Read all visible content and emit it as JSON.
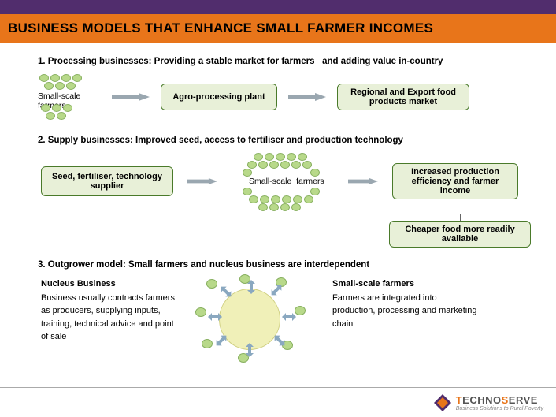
{
  "colors": {
    "purple_bar": "#512d6d",
    "orange_bar": "#e8751a",
    "box_border": "#4a7a2a",
    "box_fill": "#e8f0d8",
    "bubble_fill": "#b8d98a",
    "bubble_border": "#88b060",
    "circle_fill": "#f0f0b8",
    "circle_border": "#cfcf80",
    "arrow_fill": "#9aa7b0",
    "cell_arrow": "#8aa8c0",
    "text": "#000000",
    "logo_gray": "#555555",
    "logo_accent": "#e8751a",
    "logo_tag": "#888888"
  },
  "title": "BUSINESS MODELS THAT ENHANCE SMALL FARMER INCOMES",
  "section1": {
    "heading": "1. Processing businesses: Providing a stable market for farmers   and adding value in-country",
    "farmers_label": "Small-scale farmers",
    "box_a": "Agro-processing plant",
    "box_b": "Regional and Export food products market"
  },
  "section2": {
    "heading": "2. Supply businesses: Improved seed, access to fertiliser and production technology",
    "supplier_box": "Seed, fertiliser, technology supplier",
    "center_label": "Small-scale  farmers",
    "result_box": "Increased production efficiency and farmer income",
    "cheaper_box": "Cheaper food more readily available"
  },
  "section3": {
    "heading": "3. Outgrower model: Small farmers and nucleus business are interdependent",
    "nucleus": {
      "title": "Nucleus Business",
      "body": "Business usually contracts farmers as producers, supplying inputs, training, technical advice and point of sale"
    },
    "farmers": {
      "title": "Small-scale farmers",
      "body": "Farmers are integrated into production, processing and marketing chain"
    }
  },
  "logo": {
    "name_a": "T",
    "name_b": "ECHNO",
    "name_c": "S",
    "name_d": "ERVE",
    "tagline": "Business Solutions to Rural Poverty"
  },
  "geometry": {
    "bubbles_s1": [
      {
        "l": 2,
        "t": 0,
        "w": 12,
        "h": 10
      },
      {
        "l": 16,
        "t": 0,
        "w": 12,
        "h": 10
      },
      {
        "l": 30,
        "t": 0,
        "w": 12,
        "h": 10
      },
      {
        "l": 44,
        "t": 0,
        "w": 12,
        "h": 10
      },
      {
        "l": 8,
        "t": 10,
        "w": 12,
        "h": 10
      },
      {
        "l": 22,
        "t": 10,
        "w": 12,
        "h": 10
      },
      {
        "l": 36,
        "t": 10,
        "w": 12,
        "h": 10
      },
      {
        "l": 4,
        "t": 38,
        "w": 12,
        "h": 10
      },
      {
        "l": 18,
        "t": 38,
        "w": 12,
        "h": 10
      },
      {
        "l": 32,
        "t": 38,
        "w": 12,
        "h": 10
      },
      {
        "l": 10,
        "t": 48,
        "w": 12,
        "h": 10
      },
      {
        "l": 24,
        "t": 48,
        "w": 12,
        "h": 10
      }
    ],
    "bubbles_s2": [
      {
        "l": 28,
        "t": 0,
        "w": 12,
        "h": 10
      },
      {
        "l": 42,
        "t": 0,
        "w": 12,
        "h": 10
      },
      {
        "l": 56,
        "t": 0,
        "w": 12,
        "h": 10
      },
      {
        "l": 70,
        "t": 0,
        "w": 12,
        "h": 10
      },
      {
        "l": 84,
        "t": 0,
        "w": 12,
        "h": 10
      },
      {
        "l": 20,
        "t": 10,
        "w": 12,
        "h": 10
      },
      {
        "l": 34,
        "t": 10,
        "w": 12,
        "h": 10
      },
      {
        "l": 48,
        "t": 10,
        "w": 12,
        "h": 10
      },
      {
        "l": 62,
        "t": 10,
        "w": 12,
        "h": 10
      },
      {
        "l": 76,
        "t": 10,
        "w": 12,
        "h": 10
      },
      {
        "l": 90,
        "t": 10,
        "w": 12,
        "h": 10
      },
      {
        "l": 14,
        "t": 20,
        "w": 12,
        "h": 10
      },
      {
        "l": 100,
        "t": 20,
        "w": 12,
        "h": 10
      },
      {
        "l": 14,
        "t": 44,
        "w": 12,
        "h": 10
      },
      {
        "l": 100,
        "t": 44,
        "w": 12,
        "h": 10
      },
      {
        "l": 22,
        "t": 54,
        "w": 12,
        "h": 10
      },
      {
        "l": 36,
        "t": 54,
        "w": 12,
        "h": 10
      },
      {
        "l": 50,
        "t": 54,
        "w": 12,
        "h": 10
      },
      {
        "l": 64,
        "t": 54,
        "w": 12,
        "h": 10
      },
      {
        "l": 78,
        "t": 54,
        "w": 12,
        "h": 10
      },
      {
        "l": 92,
        "t": 54,
        "w": 12,
        "h": 10
      },
      {
        "l": 34,
        "t": 64,
        "w": 12,
        "h": 10
      },
      {
        "l": 48,
        "t": 64,
        "w": 12,
        "h": 10
      },
      {
        "l": 62,
        "t": 64,
        "w": 12,
        "h": 10
      },
      {
        "l": 76,
        "t": 64,
        "w": 12,
        "h": 10
      }
    ],
    "bubbles_s3": [
      {
        "l": 20,
        "t": 2,
        "w": 14,
        "h": 12
      },
      {
        "l": 62,
        "t": -4,
        "w": 14,
        "h": 12
      },
      {
        "l": 108,
        "t": 0,
        "w": 14,
        "h": 12
      },
      {
        "l": 6,
        "t": 38,
        "w": 14,
        "h": 12
      },
      {
        "l": 132,
        "t": 36,
        "w": 14,
        "h": 12
      },
      {
        "l": 14,
        "t": 78,
        "w": 14,
        "h": 12
      },
      {
        "l": 60,
        "t": 96,
        "w": 14,
        "h": 12
      },
      {
        "l": 116,
        "t": 80,
        "w": 14,
        "h": 12
      }
    ],
    "cell_arrows_s3": [
      {
        "l": 36,
        "t": 12,
        "r": 45
      },
      {
        "l": 68,
        "t": 6,
        "r": 90
      },
      {
        "l": 100,
        "t": 10,
        "r": 135
      },
      {
        "l": 22,
        "t": 44,
        "r": 0
      },
      {
        "l": 116,
        "t": 44,
        "r": 180
      },
      {
        "l": 30,
        "t": 74,
        "r": -45
      },
      {
        "l": 66,
        "t": 86,
        "r": -90
      },
      {
        "l": 104,
        "t": 74,
        "r": -135
      }
    ]
  }
}
